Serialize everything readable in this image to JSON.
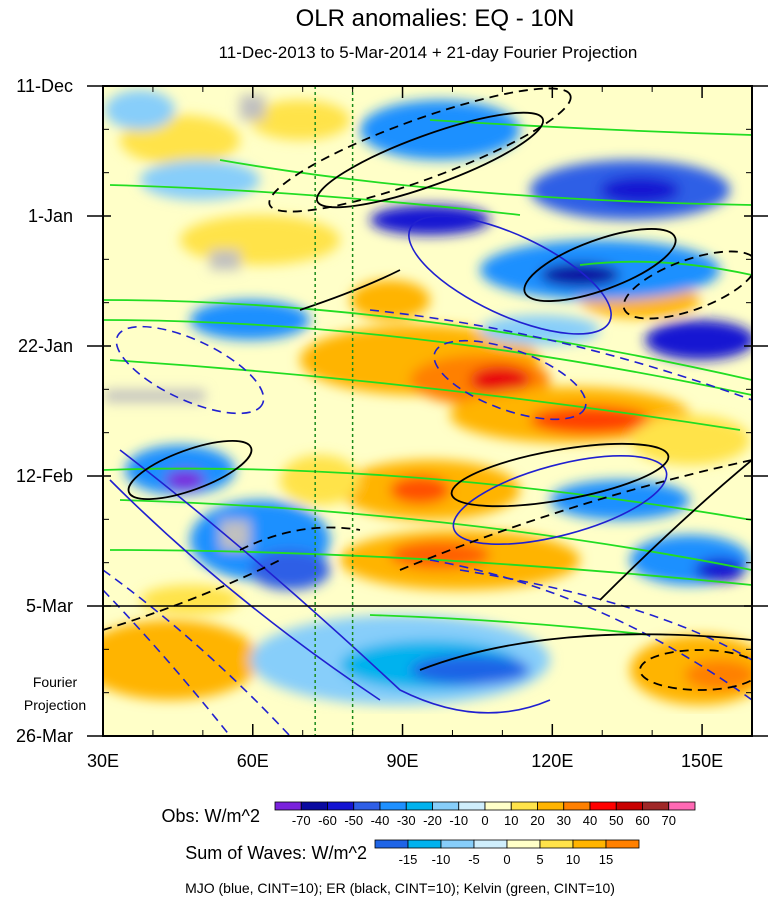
{
  "chart_data": {
    "type": "heatmap",
    "title": "OLR anomalies: EQ - 10N",
    "subtitle": "11-Dec-2013 to 5-Mar-2014 + 21-day Fourier Projection",
    "x_axis": {
      "range": [
        30,
        160
      ],
      "unit": "degrees longitude",
      "ticks": [
        {
          "value": 30,
          "label": "30E"
        },
        {
          "value": 60,
          "label": "60E"
        },
        {
          "value": 90,
          "label": "90E"
        },
        {
          "value": 120,
          "label": "120E"
        },
        {
          "value": 150,
          "label": "150E"
        }
      ]
    },
    "y_axis": {
      "range_days": [
        0,
        105
      ],
      "direction": "time increases downward",
      "ticks": [
        {
          "day": 0,
          "label": "11-Dec"
        },
        {
          "day": 21,
          "label": "1-Jan"
        },
        {
          "day": 42,
          "label": "22-Jan"
        },
        {
          "day": 63,
          "label": "12-Feb"
        },
        {
          "day": 84,
          "label": "5-Mar"
        },
        {
          "day": 105,
          "label": "26-Mar"
        }
      ],
      "projection_label": [
        "Fourier",
        "Projection"
      ],
      "projection_start_day": 84
    },
    "reference_lines_lon": [
      72.5,
      80
    ],
    "obs_colorbar": {
      "label": "Obs: W/m^2",
      "levels": [
        "-70",
        "-60",
        "-50",
        "-40",
        "-30",
        "-20",
        "-10",
        "0",
        "10",
        "20",
        "30",
        "40",
        "50",
        "60",
        "70"
      ],
      "colors": [
        "#7a22dc",
        "#0a0aa0",
        "#1414d2",
        "#2f5fe6",
        "#1e90ff",
        "#00b2ee",
        "#87cefa",
        "#cfeefc",
        "#ffffc8",
        "#ffe34a",
        "#ffb400",
        "#ff8000",
        "#ff0000",
        "#c80000",
        "#a02828",
        "#ff69b4"
      ]
    },
    "waves_colorbar": {
      "label": "Sum of Waves: W/m^2",
      "levels": [
        "-15",
        "-10",
        "-5",
        "0",
        "5",
        "10",
        "15"
      ],
      "colors": [
        "#1e64e6",
        "#00b2ee",
        "#87cefa",
        "#cfeefc",
        "#ffffc8",
        "#ffe34a",
        "#ffb400",
        "#ff8000"
      ]
    },
    "footer": "MJO (blue, CINT=10); ER (black, CINT=10); Kelvin (green, CINT=10)"
  }
}
